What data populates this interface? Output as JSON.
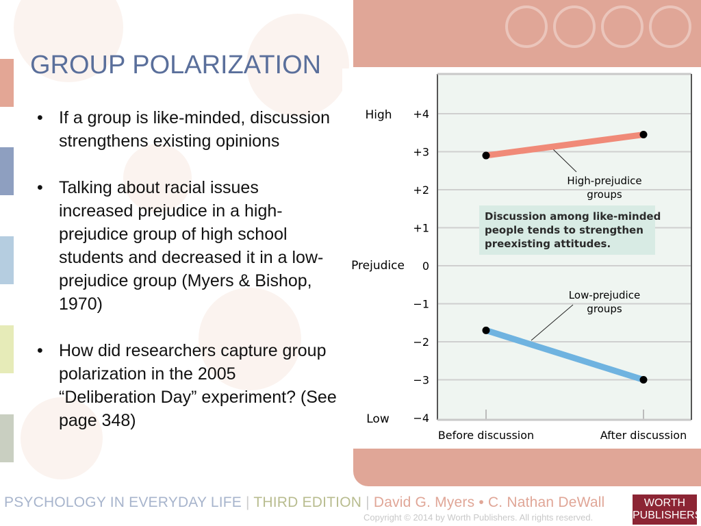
{
  "slide": {
    "title": "GROUP POLARIZATION",
    "bullets": [
      "If a group is like-minded, discussion strengthens existing opinions",
      "Talking about racial issues increased prejudice in a high-prejudice group of high school students and decreased it in a low-prejudice group (Myers & Bishop, 1970)",
      "How did researchers capture group polarization in the 2005 “Deliberation Day” experiment? (See page 348)"
    ]
  },
  "footer": {
    "book": "PSYCHOLOGY IN EVERYDAY LIFE",
    "sep": " | ",
    "edition": "THIRD EDITION",
    "authors": "David G. Myers • C. Nathan DeWall",
    "copyright": "Copyright © 2014 by Worth Publishers. All rights reserved.",
    "logo": "WORTH PUBLISHERS"
  },
  "colors": {
    "accent": "#e0a697",
    "title": "#5a6f9b",
    "high_series": "#f08a78",
    "low_series": "#6fb3e0",
    "plot_bg": "#eff5f1"
  },
  "chart_data": {
    "type": "line",
    "categories": [
      "Before discussion",
      "After discussion"
    ],
    "ylabel": "Prejudice",
    "ylim": [
      -4,
      4
    ],
    "yticks": [
      "+4",
      "+3",
      "+2",
      "+1",
      "0",
      "−1",
      "−2",
      "−3",
      "−4"
    ],
    "ytick_values": [
      4,
      3,
      2,
      1,
      0,
      -1,
      -2,
      -3,
      -4
    ],
    "y_high_label": "High",
    "y_low_label": "Low",
    "grid": true,
    "series": [
      {
        "name": "High-prejudice groups",
        "label_line1": "High-prejudice",
        "label_line2": "groups",
        "values": [
          2.9,
          3.45
        ],
        "color": "#f08a78"
      },
      {
        "name": "Low-prejudice groups",
        "label_line1": "Low-prejudice",
        "label_line2": "groups",
        "values": [
          -1.7,
          -3.0
        ],
        "color": "#6fb3e0"
      }
    ],
    "annotation": [
      "Discussion among like-minded",
      "people tends to strengthen",
      "preexisting attitudes."
    ]
  }
}
